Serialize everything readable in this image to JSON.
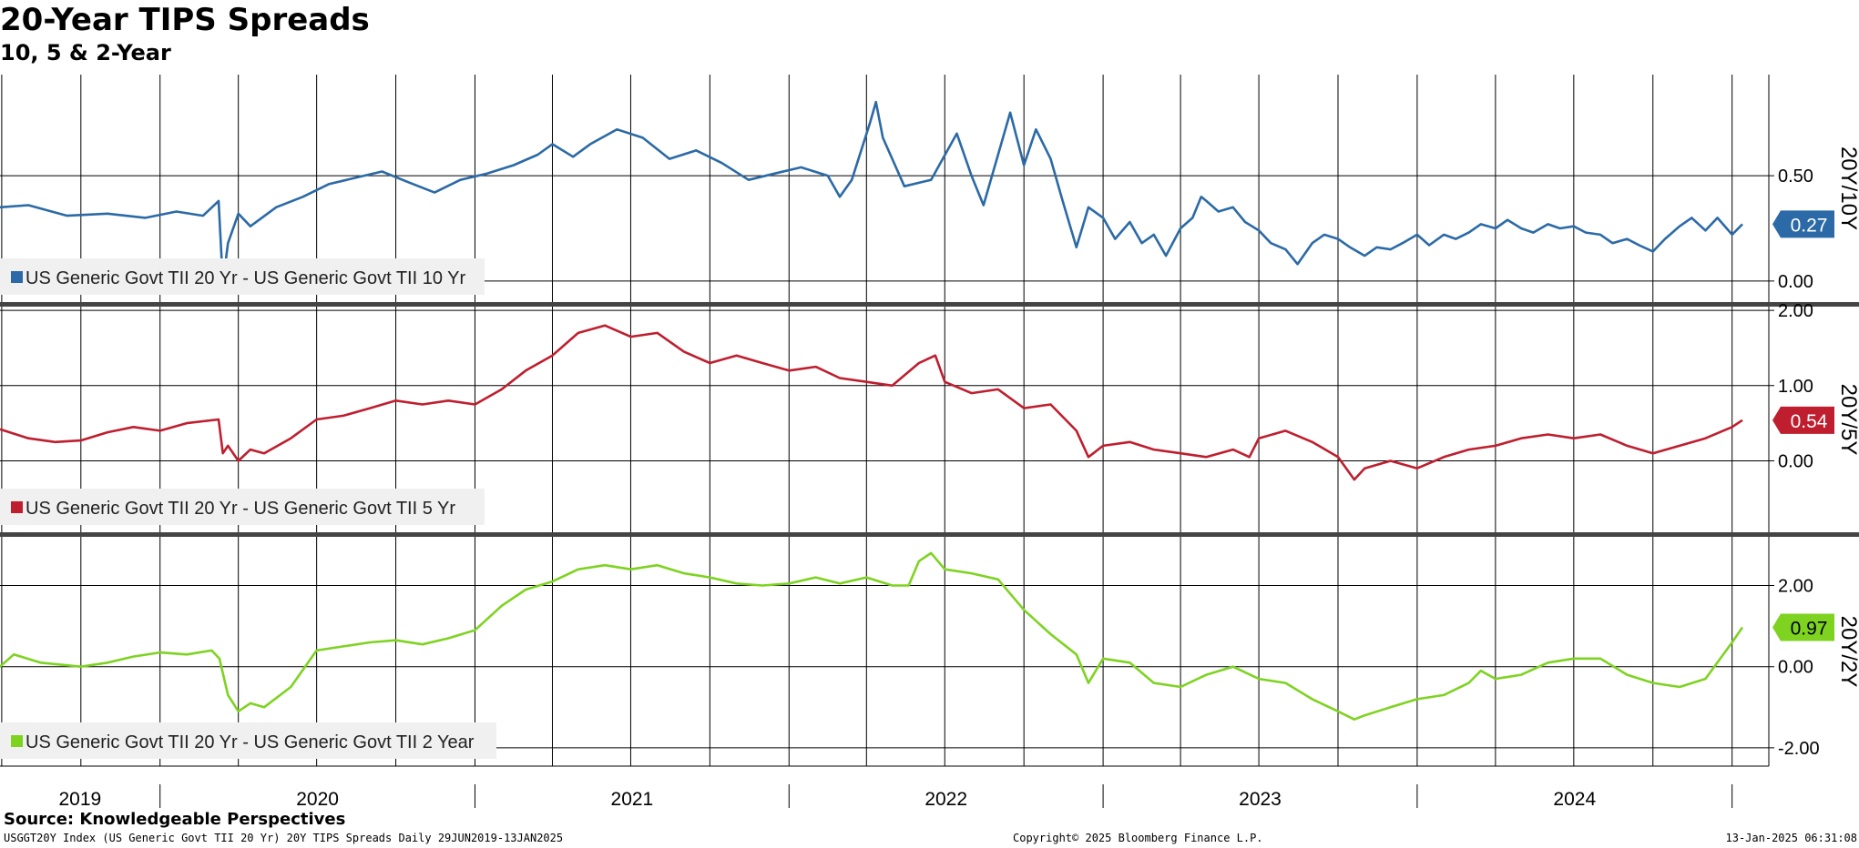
{
  "title": "20-Year TIPS Spreads",
  "subtitle": "10, 5 & 2-Year",
  "source": "Source: Knowledgeable Perspectives",
  "footer": {
    "left": "USGGT20Y Index (US Generic Govt TII 20 Yr) 20Y TIPS Spreads  Daily 29JUN2019-13JAN2025",
    "center": "Copyright© 2025 Bloomberg Finance L.P.",
    "right": "13-Jan-2025 06:31:08"
  },
  "chart_data": {
    "type": "line",
    "x_labels": [
      "2019",
      "2020",
      "2021",
      "2022",
      "2023",
      "2024"
    ],
    "x_range": [
      "2019-06-29",
      "2025-01-13"
    ],
    "panels": [
      {
        "name": "20Y/10Y",
        "legend": "US Generic Govt TII 20 Yr - US Generic Govt TII 10 Yr",
        "color": "#2b6aa6",
        "last_value": "0.27",
        "ylim": [
          -0.1,
          0.98
        ],
        "yticks": [
          {
            "v": 0.5,
            "label": "0.50"
          },
          {
            "v": 0.0,
            "label": "0.00"
          }
        ],
        "series": [
          [
            "2019-06-29",
            0.35
          ],
          [
            "2019-08-01",
            0.36
          ],
          [
            "2019-09-15",
            0.31
          ],
          [
            "2019-11-01",
            0.32
          ],
          [
            "2019-12-15",
            0.3
          ],
          [
            "2020-01-20",
            0.33
          ],
          [
            "2020-02-20",
            0.31
          ],
          [
            "2020-03-09",
            0.38
          ],
          [
            "2020-03-14",
            -0.01
          ],
          [
            "2020-03-20",
            0.18
          ],
          [
            "2020-04-01",
            0.32
          ],
          [
            "2020-04-15",
            0.26
          ],
          [
            "2020-05-15",
            0.35
          ],
          [
            "2020-06-15",
            0.4
          ],
          [
            "2020-07-15",
            0.46
          ],
          [
            "2020-08-15",
            0.49
          ],
          [
            "2020-09-15",
            0.52
          ],
          [
            "2020-10-15",
            0.47
          ],
          [
            "2020-11-15",
            0.42
          ],
          [
            "2020-12-15",
            0.48
          ],
          [
            "2021-01-15",
            0.51
          ],
          [
            "2021-02-15",
            0.55
          ],
          [
            "2021-03-15",
            0.6
          ],
          [
            "2021-04-01",
            0.65
          ],
          [
            "2021-04-25",
            0.59
          ],
          [
            "2021-05-15",
            0.65
          ],
          [
            "2021-06-15",
            0.72
          ],
          [
            "2021-07-15",
            0.68
          ],
          [
            "2021-08-15",
            0.58
          ],
          [
            "2021-09-15",
            0.62
          ],
          [
            "2021-10-15",
            0.56
          ],
          [
            "2021-11-15",
            0.48
          ],
          [
            "2021-12-15",
            0.51
          ],
          [
            "2022-01-15",
            0.54
          ],
          [
            "2022-02-15",
            0.5
          ],
          [
            "2022-03-01",
            0.4
          ],
          [
            "2022-03-15",
            0.48
          ],
          [
            "2022-04-05",
            0.75
          ],
          [
            "2022-04-12",
            0.85
          ],
          [
            "2022-04-20",
            0.68
          ],
          [
            "2022-05-15",
            0.45
          ],
          [
            "2022-06-15",
            0.48
          ],
          [
            "2022-07-15",
            0.7
          ],
          [
            "2022-08-01",
            0.5
          ],
          [
            "2022-08-15",
            0.36
          ],
          [
            "2022-09-01",
            0.6
          ],
          [
            "2022-09-15",
            0.8
          ],
          [
            "2022-10-01",
            0.55
          ],
          [
            "2022-10-15",
            0.72
          ],
          [
            "2022-11-01",
            0.58
          ],
          [
            "2022-11-15",
            0.38
          ],
          [
            "2022-12-01",
            0.16
          ],
          [
            "2022-12-15",
            0.35
          ],
          [
            "2023-01-01",
            0.3
          ],
          [
            "2023-01-15",
            0.2
          ],
          [
            "2023-02-01",
            0.28
          ],
          [
            "2023-02-15",
            0.18
          ],
          [
            "2023-03-01",
            0.22
          ],
          [
            "2023-03-15",
            0.12
          ],
          [
            "2023-04-01",
            0.25
          ],
          [
            "2023-04-15",
            0.3
          ],
          [
            "2023-04-25",
            0.4
          ],
          [
            "2023-05-01",
            0.38
          ],
          [
            "2023-05-15",
            0.33
          ],
          [
            "2023-06-01",
            0.35
          ],
          [
            "2023-06-15",
            0.28
          ],
          [
            "2023-07-01",
            0.24
          ],
          [
            "2023-07-15",
            0.18
          ],
          [
            "2023-08-01",
            0.15
          ],
          [
            "2023-08-15",
            0.08
          ],
          [
            "2023-09-01",
            0.18
          ],
          [
            "2023-09-15",
            0.22
          ],
          [
            "2023-10-01",
            0.2
          ],
          [
            "2023-10-15",
            0.16
          ],
          [
            "2023-11-01",
            0.12
          ],
          [
            "2023-11-15",
            0.16
          ],
          [
            "2023-12-01",
            0.15
          ],
          [
            "2023-12-15",
            0.18
          ],
          [
            "2024-01-01",
            0.22
          ],
          [
            "2024-01-15",
            0.17
          ],
          [
            "2024-02-01",
            0.22
          ],
          [
            "2024-02-15",
            0.2
          ],
          [
            "2024-03-01",
            0.23
          ],
          [
            "2024-03-15",
            0.27
          ],
          [
            "2024-04-01",
            0.25
          ],
          [
            "2024-04-15",
            0.29
          ],
          [
            "2024-05-01",
            0.25
          ],
          [
            "2024-05-15",
            0.23
          ],
          [
            "2024-06-01",
            0.27
          ],
          [
            "2024-06-15",
            0.25
          ],
          [
            "2024-07-01",
            0.26
          ],
          [
            "2024-07-15",
            0.23
          ],
          [
            "2024-08-01",
            0.22
          ],
          [
            "2024-08-15",
            0.18
          ],
          [
            "2024-09-01",
            0.2
          ],
          [
            "2024-09-15",
            0.17
          ],
          [
            "2024-10-01",
            0.14
          ],
          [
            "2024-10-15",
            0.2
          ],
          [
            "2024-11-01",
            0.26
          ],
          [
            "2024-11-15",
            0.3
          ],
          [
            "2024-12-01",
            0.24
          ],
          [
            "2024-12-15",
            0.3
          ],
          [
            "2025-01-01",
            0.22
          ],
          [
            "2025-01-13",
            0.27
          ]
        ]
      },
      {
        "name": "20Y/5Y",
        "legend": "US Generic Govt TII 20 Yr - US Generic Govt TII 5 Yr",
        "color": "#bf1e2e",
        "last_value": "0.54",
        "ylim": [
          -0.95,
          2.05
        ],
        "yticks": [
          {
            "v": 2.0,
            "label": "2.00"
          },
          {
            "v": 1.0,
            "label": "1.00"
          },
          {
            "v": 0.0,
            "label": "0.00"
          }
        ],
        "series": [
          [
            "2019-06-29",
            0.42
          ],
          [
            "2019-08-01",
            0.3
          ],
          [
            "2019-09-01",
            0.25
          ],
          [
            "2019-10-01",
            0.27
          ],
          [
            "2019-11-01",
            0.38
          ],
          [
            "2019-12-01",
            0.45
          ],
          [
            "2020-01-01",
            0.4
          ],
          [
            "2020-02-01",
            0.5
          ],
          [
            "2020-03-09",
            0.55
          ],
          [
            "2020-03-14",
            0.1
          ],
          [
            "2020-03-20",
            0.2
          ],
          [
            "2020-04-01",
            0.0
          ],
          [
            "2020-04-15",
            0.15
          ],
          [
            "2020-05-01",
            0.1
          ],
          [
            "2020-06-01",
            0.3
          ],
          [
            "2020-07-01",
            0.55
          ],
          [
            "2020-08-01",
            0.6
          ],
          [
            "2020-09-01",
            0.7
          ],
          [
            "2020-10-01",
            0.8
          ],
          [
            "2020-11-01",
            0.75
          ],
          [
            "2020-12-01",
            0.8
          ],
          [
            "2021-01-01",
            0.75
          ],
          [
            "2021-02-01",
            0.95
          ],
          [
            "2021-03-01",
            1.2
          ],
          [
            "2021-04-01",
            1.4
          ],
          [
            "2021-05-01",
            1.7
          ],
          [
            "2021-06-01",
            1.8
          ],
          [
            "2021-07-01",
            1.65
          ],
          [
            "2021-08-01",
            1.7
          ],
          [
            "2021-09-01",
            1.45
          ],
          [
            "2021-10-01",
            1.3
          ],
          [
            "2021-11-01",
            1.4
          ],
          [
            "2021-12-01",
            1.3
          ],
          [
            "2022-01-01",
            1.2
          ],
          [
            "2022-02-01",
            1.25
          ],
          [
            "2022-03-01",
            1.1
          ],
          [
            "2022-04-01",
            1.05
          ],
          [
            "2022-05-01",
            1.0
          ],
          [
            "2022-06-01",
            1.3
          ],
          [
            "2022-06-20",
            1.4
          ],
          [
            "2022-07-01",
            1.05
          ],
          [
            "2022-08-01",
            0.9
          ],
          [
            "2022-09-01",
            0.95
          ],
          [
            "2022-10-01",
            0.7
          ],
          [
            "2022-11-01",
            0.75
          ],
          [
            "2022-12-01",
            0.4
          ],
          [
            "2022-12-15",
            0.05
          ],
          [
            "2023-01-01",
            0.2
          ],
          [
            "2023-02-01",
            0.25
          ],
          [
            "2023-03-01",
            0.15
          ],
          [
            "2023-04-01",
            0.1
          ],
          [
            "2023-05-01",
            0.05
          ],
          [
            "2023-06-01",
            0.15
          ],
          [
            "2023-06-20",
            0.05
          ],
          [
            "2023-07-01",
            0.3
          ],
          [
            "2023-08-01",
            0.4
          ],
          [
            "2023-09-01",
            0.25
          ],
          [
            "2023-10-01",
            0.05
          ],
          [
            "2023-10-20",
            -0.25
          ],
          [
            "2023-11-01",
            -0.1
          ],
          [
            "2023-12-01",
            0.0
          ],
          [
            "2024-01-01",
            -0.1
          ],
          [
            "2024-02-01",
            0.05
          ],
          [
            "2024-03-01",
            0.15
          ],
          [
            "2024-04-01",
            0.2
          ],
          [
            "2024-05-01",
            0.3
          ],
          [
            "2024-06-01",
            0.35
          ],
          [
            "2024-07-01",
            0.3
          ],
          [
            "2024-08-01",
            0.35
          ],
          [
            "2024-09-01",
            0.2
          ],
          [
            "2024-10-01",
            0.1
          ],
          [
            "2024-11-01",
            0.2
          ],
          [
            "2024-12-01",
            0.3
          ],
          [
            "2025-01-01",
            0.45
          ],
          [
            "2025-01-13",
            0.54
          ]
        ]
      },
      {
        "name": "20Y/2Y",
        "legend": "US Generic Govt TII 20 Yr - US Generic Govt TII 2 Year",
        "color": "#7ed321",
        "last_value": "0.97",
        "ylim": [
          -2.45,
          3.2
        ],
        "yticks": [
          {
            "v": 2.0,
            "label": "2.00"
          },
          {
            "v": 0.0,
            "label": "0.00"
          },
          {
            "v": -2.0,
            "label": "-2.00"
          }
        ],
        "series": [
          [
            "2019-06-29",
            0.0
          ],
          [
            "2019-07-15",
            0.3
          ],
          [
            "2019-08-15",
            0.1
          ],
          [
            "2019-10-01",
            0.0
          ],
          [
            "2019-11-01",
            0.1
          ],
          [
            "2019-12-01",
            0.25
          ],
          [
            "2020-01-01",
            0.35
          ],
          [
            "2020-02-01",
            0.3
          ],
          [
            "2020-03-01",
            0.4
          ],
          [
            "2020-03-10",
            0.2
          ],
          [
            "2020-03-20",
            -0.7
          ],
          [
            "2020-04-01",
            -1.1
          ],
          [
            "2020-04-15",
            -0.9
          ],
          [
            "2020-05-01",
            -1.0
          ],
          [
            "2020-06-01",
            -0.5
          ],
          [
            "2020-07-01",
            0.4
          ],
          [
            "2020-08-01",
            0.5
          ],
          [
            "2020-09-01",
            0.6
          ],
          [
            "2020-10-01",
            0.65
          ],
          [
            "2020-11-01",
            0.55
          ],
          [
            "2020-12-01",
            0.7
          ],
          [
            "2021-01-01",
            0.9
          ],
          [
            "2021-02-01",
            1.5
          ],
          [
            "2021-03-01",
            1.9
          ],
          [
            "2021-04-01",
            2.1
          ],
          [
            "2021-05-01",
            2.4
          ],
          [
            "2021-06-01",
            2.5
          ],
          [
            "2021-07-01",
            2.4
          ],
          [
            "2021-08-01",
            2.5
          ],
          [
            "2021-09-01",
            2.3
          ],
          [
            "2021-10-01",
            2.2
          ],
          [
            "2021-11-01",
            2.05
          ],
          [
            "2021-12-01",
            2.0
          ],
          [
            "2022-01-01",
            2.05
          ],
          [
            "2022-02-01",
            2.2
          ],
          [
            "2022-03-01",
            2.05
          ],
          [
            "2022-04-01",
            2.2
          ],
          [
            "2022-05-01",
            2.0
          ],
          [
            "2022-05-20",
            2.0
          ],
          [
            "2022-06-01",
            2.6
          ],
          [
            "2022-06-15",
            2.8
          ],
          [
            "2022-07-01",
            2.4
          ],
          [
            "2022-08-01",
            2.3
          ],
          [
            "2022-09-01",
            2.15
          ],
          [
            "2022-10-01",
            1.4
          ],
          [
            "2022-11-01",
            0.8
          ],
          [
            "2022-12-01",
            0.3
          ],
          [
            "2022-12-15",
            -0.4
          ],
          [
            "2023-01-01",
            0.2
          ],
          [
            "2023-02-01",
            0.1
          ],
          [
            "2023-03-01",
            -0.4
          ],
          [
            "2023-04-01",
            -0.5
          ],
          [
            "2023-05-01",
            -0.2
          ],
          [
            "2023-06-01",
            0.0
          ],
          [
            "2023-07-01",
            -0.3
          ],
          [
            "2023-08-01",
            -0.4
          ],
          [
            "2023-09-01",
            -0.8
          ],
          [
            "2023-10-01",
            -1.1
          ],
          [
            "2023-10-20",
            -1.3
          ],
          [
            "2023-11-01",
            -1.2
          ],
          [
            "2023-12-01",
            -1.0
          ],
          [
            "2024-01-01",
            -0.8
          ],
          [
            "2024-02-01",
            -0.7
          ],
          [
            "2024-03-01",
            -0.4
          ],
          [
            "2024-03-15",
            -0.1
          ],
          [
            "2024-04-01",
            -0.3
          ],
          [
            "2024-05-01",
            -0.2
          ],
          [
            "2024-06-01",
            0.1
          ],
          [
            "2024-07-01",
            0.2
          ],
          [
            "2024-08-01",
            0.2
          ],
          [
            "2024-09-01",
            -0.2
          ],
          [
            "2024-10-01",
            -0.4
          ],
          [
            "2024-11-01",
            -0.5
          ],
          [
            "2024-12-01",
            -0.3
          ],
          [
            "2025-01-01",
            0.6
          ],
          [
            "2025-01-13",
            0.97
          ]
        ]
      }
    ]
  }
}
